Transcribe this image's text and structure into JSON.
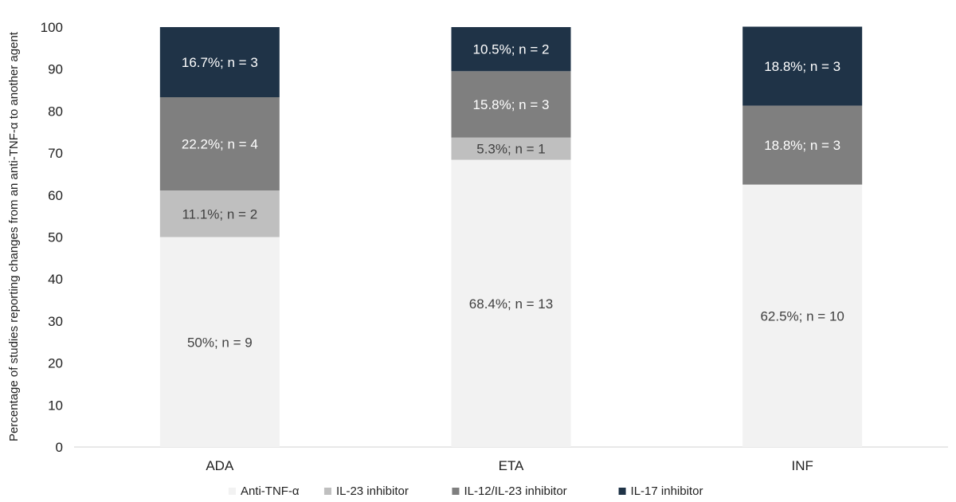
{
  "chart_data": {
    "type": "bar",
    "stacked": true,
    "title": "",
    "xlabel": "",
    "ylabel": "Percentage of studies reporting changes from an anti-TNF-α to another agent",
    "ylim": [
      0,
      100
    ],
    "yticks": [
      "0",
      "10",
      "20",
      "30",
      "40",
      "50",
      "60",
      "70",
      "80",
      "90",
      "100"
    ],
    "grid": false,
    "legend_position": "bottom",
    "categories": [
      "ADA",
      "ETA",
      "INF"
    ],
    "series": [
      {
        "name": "Anti-TNF-α",
        "color": "#f2f2f2",
        "label_color": "#404040",
        "values": [
          50,
          68.4,
          62.5
        ],
        "labels": [
          "50%; n = 9",
          "68.4%; n = 13",
          "62.5%; n = 10"
        ]
      },
      {
        "name": "IL-23 inhibitor",
        "color": "#bfbfbf",
        "label_color": "#404040",
        "values": [
          11.1,
          5.3,
          0
        ],
        "labels": [
          "11.1%; n = 2",
          "5.3%; n = 1",
          ""
        ]
      },
      {
        "name": "IL-12/IL-23 inhibitor",
        "color": "#7f7f7f",
        "label_color": "#ffffff",
        "values": [
          22.2,
          15.8,
          18.8
        ],
        "labels": [
          "22.2%; n = 4",
          "15.8%; n = 3",
          "18.8%; n = 3"
        ]
      },
      {
        "name": "IL-17 inhibitor",
        "color": "#1f3347",
        "label_color": "#ffffff",
        "values": [
          16.7,
          10.5,
          18.8
        ],
        "labels": [
          "16.7%; n = 3",
          "10.5%; n = 2",
          "18.8%; n = 3"
        ]
      }
    ]
  }
}
